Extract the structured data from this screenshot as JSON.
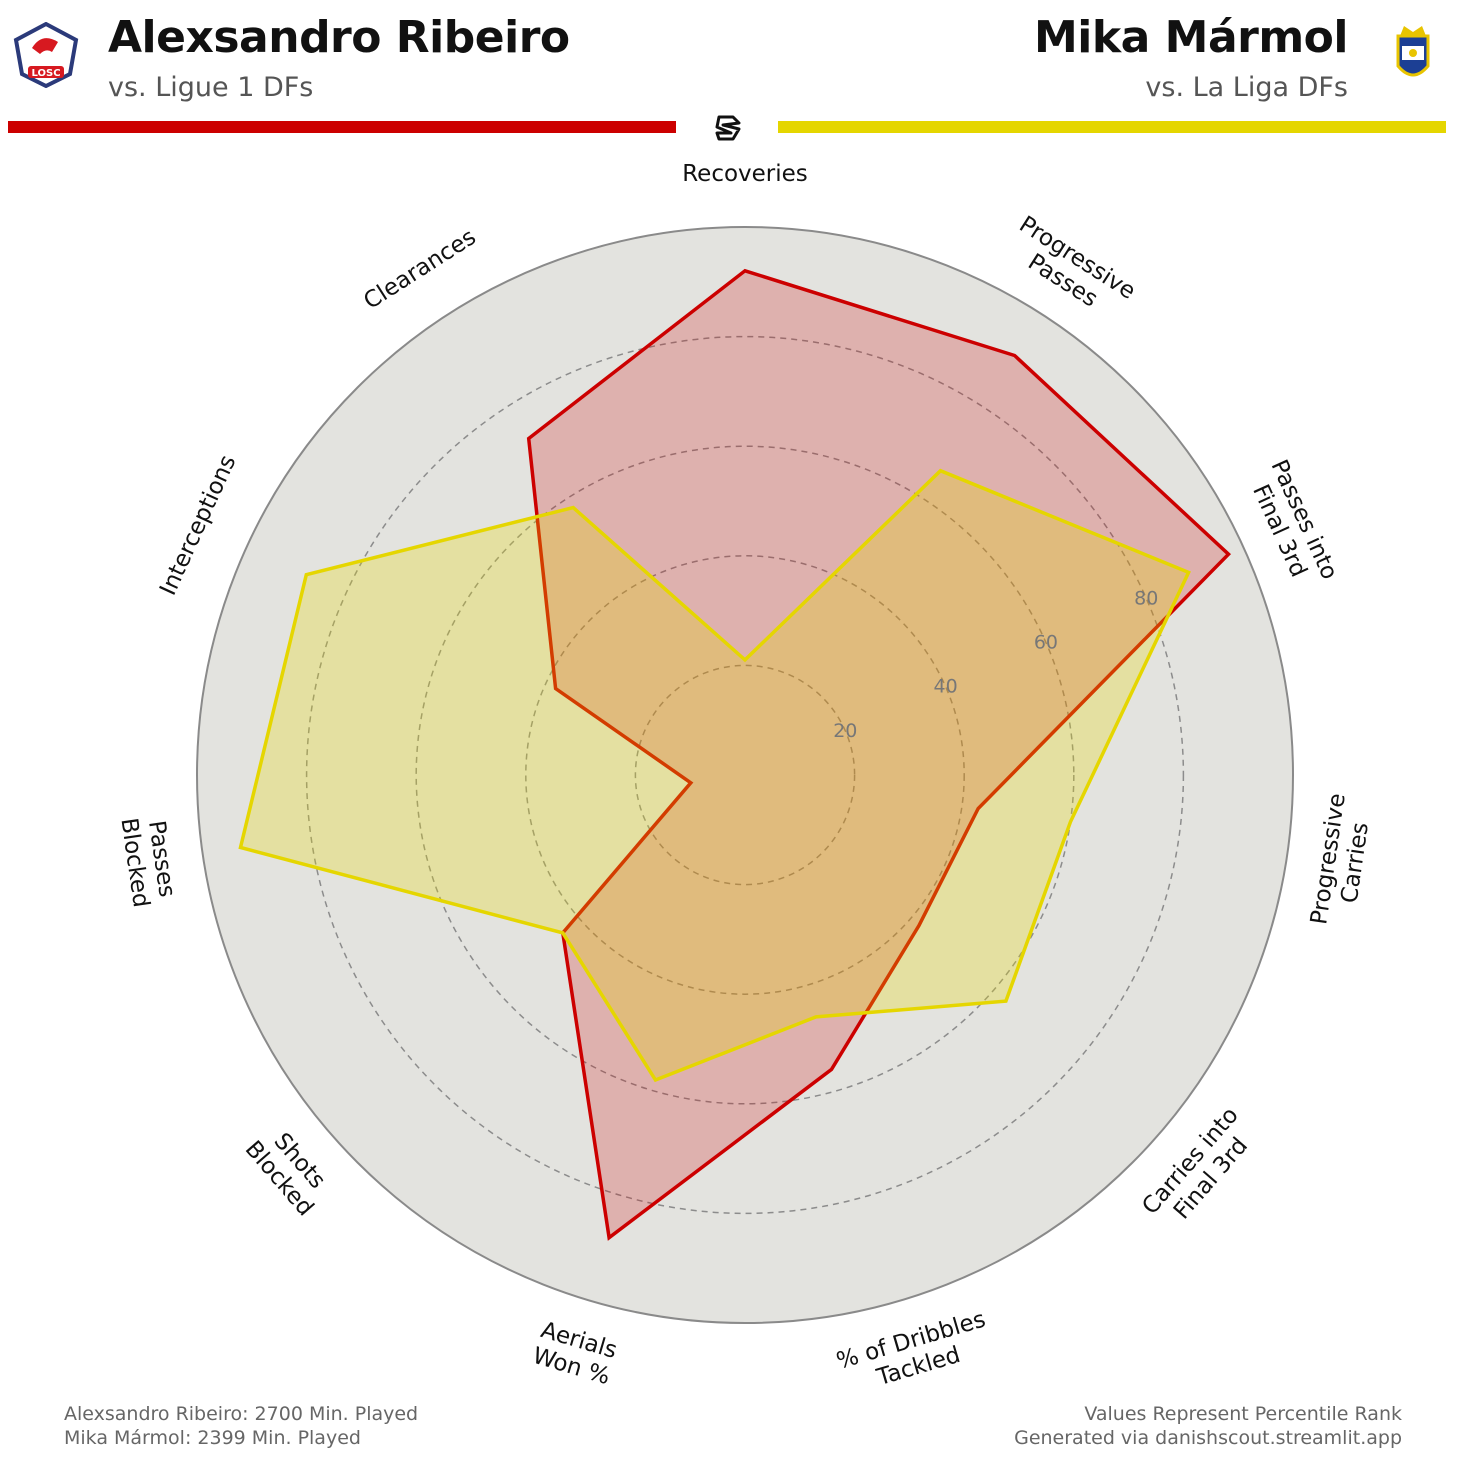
{
  "players": [
    {
      "name": "Alexsandro Ribeiro",
      "subtitle": "vs. Ligue 1 DFs",
      "color": "#cc0000",
      "fill": "rgba(204,0,0,0.22)",
      "crest_text": "LOSC",
      "minutes_text": "Alexsandro Ribeiro: 2700 Min. Played"
    },
    {
      "name": "Mika Mármol",
      "subtitle": "vs. La Liga DFs",
      "color": "#e5d600",
      "fill": "rgba(229,214,0,0.28)",
      "minutes_text": "Mika Mármol: 2399 Min. Played"
    }
  ],
  "footer": {
    "note1": "Values Represent Percentile Rank",
    "note2": "Generated via danishscout.streamlit.app"
  },
  "chart_data": {
    "type": "radar",
    "scale": [
      0,
      100
    ],
    "ring_ticks": [
      20,
      40,
      60,
      80
    ],
    "axes": [
      [
        "Recoveries"
      ],
      [
        "Progressive",
        "Passes"
      ],
      [
        "Passes into",
        "Final 3rd"
      ],
      [
        "Progressive",
        "Carries"
      ],
      [
        "Carries into",
        "Final 3rd"
      ],
      [
        "% of Dribbles",
        "Tackled"
      ],
      [
        "Aerials",
        "Won %"
      ],
      [
        "Shots",
        "Blocked"
      ],
      [
        "Passes",
        "Blocked"
      ],
      [
        "Interceptions"
      ],
      [
        "Clearances"
      ]
    ],
    "series": [
      {
        "name": "Alexsandro Ribeiro",
        "values": [
          92,
          91,
          97,
          43,
          42,
          56,
          88,
          44,
          10,
          38,
          73
        ]
      },
      {
        "name": "Mika Mármol",
        "values": [
          21,
          66,
          89,
          60,
          63,
          46,
          58,
          44,
          93,
          88,
          58
        ]
      }
    ]
  }
}
